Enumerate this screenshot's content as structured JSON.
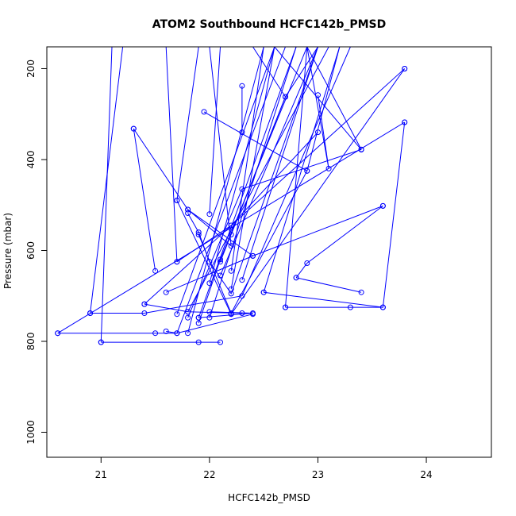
{
  "chart_data": {
    "type": "line",
    "title": "ATOM2 Southbound HCFC142b_PMSD",
    "xlabel": "HCFC142b_PMSD",
    "ylabel": "Pressure (mbar)",
    "xlim": [
      20.5,
      24.6
    ],
    "ylim": [
      1055,
      152
    ],
    "y_inverted": true,
    "xticks": [
      21,
      22,
      23,
      24
    ],
    "yticks": [
      200,
      400,
      600,
      800,
      1000
    ],
    "color": "#0000ff",
    "grid": false,
    "legend": "none",
    "series": [
      {
        "points": [
          [
            20.6,
            782
          ],
          [
            21.5,
            782
          ],
          [
            21.7,
            782
          ],
          [
            22.4,
            740
          ]
        ]
      },
      {
        "points": [
          [
            20.6,
            782
          ],
          [
            23.8,
            318
          ]
        ]
      },
      {
        "points": [
          [
            21.0,
            802
          ],
          [
            21.9,
            802
          ],
          [
            22.1,
            802
          ]
        ]
      },
      {
        "points": [
          [
            21.0,
            802
          ],
          [
            21.1,
            152
          ]
        ]
      },
      {
        "points": [
          [
            20.9,
            738
          ],
          [
            21.4,
            738
          ],
          [
            22.3,
            700
          ],
          [
            23.3,
            152
          ]
        ]
      },
      {
        "points": [
          [
            20.9,
            738
          ],
          [
            21.2,
            152
          ]
        ]
      },
      {
        "points": [
          [
            21.3,
            332
          ],
          [
            21.5,
            645
          ]
        ]
      },
      {
        "points": [
          [
            21.3,
            332
          ],
          [
            21.8,
            510
          ],
          [
            22.4,
            612
          ]
        ]
      },
      {
        "points": [
          [
            21.4,
            718
          ],
          [
            21.8,
            735
          ],
          [
            22.3,
            738
          ]
        ]
      },
      {
        "points": [
          [
            21.4,
            718
          ],
          [
            23.8,
            200
          ]
        ]
      },
      {
        "points": [
          [
            21.6,
            778
          ],
          [
            21.7,
            782
          ],
          [
            22.7,
            152
          ]
        ]
      },
      {
        "points": [
          [
            21.6,
            692
          ],
          [
            22.4,
            612
          ],
          [
            23.6,
            502
          ]
        ]
      },
      {
        "points": [
          [
            21.7,
            490
          ],
          [
            22.2,
            740
          ]
        ]
      },
      {
        "points": [
          [
            21.7,
            490
          ],
          [
            21.9,
            152
          ]
        ]
      },
      {
        "points": [
          [
            21.7,
            625
          ],
          [
            22.2,
            545
          ],
          [
            23.0,
            340
          ]
        ]
      },
      {
        "points": [
          [
            21.7,
            625
          ],
          [
            21.6,
            152
          ]
        ]
      },
      {
        "points": [
          [
            21.7,
            740
          ],
          [
            22.6,
            152
          ]
        ]
      },
      {
        "points": [
          [
            21.8,
            510
          ],
          [
            22.2,
            590
          ],
          [
            22.0,
            152
          ]
        ]
      },
      {
        "points": [
          [
            21.8,
            518
          ],
          [
            21.9,
            560
          ],
          [
            22.0,
            625
          ],
          [
            22.2,
            695
          ],
          [
            23.0,
            152
          ]
        ]
      },
      {
        "points": [
          [
            21.8,
            735
          ],
          [
            23.1,
            152
          ]
        ]
      },
      {
        "points": [
          [
            21.8,
            748
          ],
          [
            22.3,
            465
          ],
          [
            23.4,
            378
          ]
        ]
      },
      {
        "points": [
          [
            21.8,
            782
          ],
          [
            22.5,
            152
          ]
        ]
      },
      {
        "points": [
          [
            21.9,
            748
          ],
          [
            22.4,
            738
          ],
          [
            22.0,
            735
          ]
        ]
      },
      {
        "points": [
          [
            21.9,
            748
          ],
          [
            22.8,
            152
          ]
        ]
      },
      {
        "points": [
          [
            21.9,
            760
          ],
          [
            22.1,
            620
          ],
          [
            22.9,
            152
          ]
        ]
      },
      {
        "points": [
          [
            21.9,
            565
          ],
          [
            22.2,
            738
          ],
          [
            22.9,
            425
          ],
          [
            23.2,
            152
          ]
        ]
      },
      {
        "points": [
          [
            21.95,
            295
          ],
          [
            22.9,
            425
          ]
        ]
      },
      {
        "points": [
          [
            22.0,
            520
          ],
          [
            22.1,
            152
          ]
        ]
      },
      {
        "points": [
          [
            22.0,
            672
          ],
          [
            22.6,
            152
          ]
        ]
      },
      {
        "points": [
          [
            22.0,
            748
          ],
          [
            22.8,
            152
          ]
        ]
      },
      {
        "points": [
          [
            22.1,
            655
          ],
          [
            23.0,
            152
          ]
        ]
      },
      {
        "points": [
          [
            22.1,
            625
          ],
          [
            22.7,
            262
          ],
          [
            23.0,
            152
          ]
        ]
      },
      {
        "points": [
          [
            22.2,
            565
          ],
          [
            22.7,
            262
          ],
          [
            22.4,
            152
          ]
        ]
      },
      {
        "points": [
          [
            22.2,
            645
          ],
          [
            22.5,
            152
          ]
        ]
      },
      {
        "points": [
          [
            22.2,
            685
          ],
          [
            22.6,
            152
          ]
        ]
      },
      {
        "points": [
          [
            22.3,
            238
          ],
          [
            22.3,
            340
          ]
        ]
      },
      {
        "points": [
          [
            22.3,
            665
          ],
          [
            23.0,
            152
          ]
        ]
      },
      {
        "points": [
          [
            22.5,
            692
          ],
          [
            23.6,
            725
          ]
        ]
      },
      {
        "points": [
          [
            22.5,
            692
          ],
          [
            23.2,
            152
          ]
        ]
      },
      {
        "points": [
          [
            22.7,
            725
          ],
          [
            23.3,
            725
          ],
          [
            23.6,
            725
          ],
          [
            23.8,
            318
          ]
        ]
      },
      {
        "points": [
          [
            22.7,
            725
          ],
          [
            22.9,
            152
          ]
        ]
      },
      {
        "points": [
          [
            22.8,
            660
          ],
          [
            22.9,
            628
          ],
          [
            23.6,
            502
          ]
        ]
      },
      {
        "points": [
          [
            22.8,
            660
          ],
          [
            23.4,
            692
          ]
        ]
      },
      {
        "points": [
          [
            23.0,
            258
          ],
          [
            23.1,
            420
          ],
          [
            22.9,
            152
          ]
        ]
      },
      {
        "points": [
          [
            23.4,
            378
          ],
          [
            22.9,
            152
          ]
        ]
      },
      {
        "points": [
          [
            23.4,
            378
          ],
          [
            22.6,
            152
          ]
        ]
      },
      {
        "points": [
          [
            23.8,
            200
          ],
          [
            22.2,
            740
          ]
        ]
      }
    ]
  }
}
